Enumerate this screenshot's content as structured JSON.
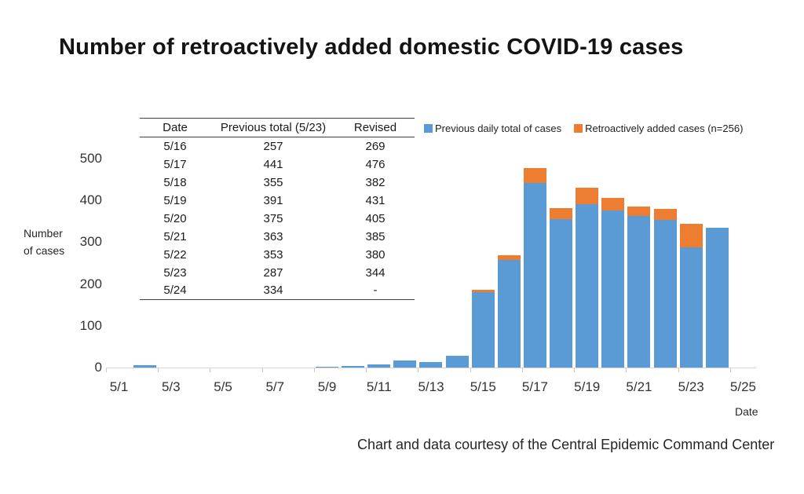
{
  "title": "Number of retroactively added domestic COVID-19 cases",
  "caption": "Chart and data courtesy of the Central Epidemic Command Center",
  "colors": {
    "blue": "#5B9BD5",
    "orange": "#ED7D31",
    "axis_line": "#D6D6D6"
  },
  "legend": {
    "items": [
      {
        "label": "Previous daily total of cases",
        "color": "#5B9BD5"
      },
      {
        "label": "Retroactively added cases (n=256)",
        "color": "#ED7D31"
      }
    ]
  },
  "y_axis": {
    "title_line1": "Number",
    "title_line2": "of cases",
    "ticks": [
      "500",
      "400",
      "300",
      "200",
      "100",
      "0"
    ]
  },
  "x_axis": {
    "title": "Date",
    "ticks": [
      "5/1",
      "5/3",
      "5/5",
      "5/7",
      "5/9",
      "5/11",
      "5/13",
      "5/15",
      "5/17",
      "5/19",
      "5/21",
      "5/23",
      "5/25"
    ]
  },
  "table": {
    "headers": [
      "Date",
      "Previous total (5/23)",
      "Revised"
    ],
    "rows": [
      [
        "5/16",
        "257",
        "269"
      ],
      [
        "5/17",
        "441",
        "476"
      ],
      [
        "5/18",
        "355",
        "382"
      ],
      [
        "5/19",
        "391",
        "431"
      ],
      [
        "5/20",
        "375",
        "405"
      ],
      [
        "5/21",
        "363",
        "385"
      ],
      [
        "5/22",
        "353",
        "380"
      ],
      [
        "5/23",
        "287",
        "344"
      ],
      [
        "5/24",
        "334",
        "-"
      ]
    ]
  },
  "chart_data": {
    "type": "bar",
    "stacked": true,
    "title": "Number of retroactively added domestic COVID-19 cases",
    "xlabel": "Date",
    "ylabel": "Number of cases",
    "ylim": [
      0,
      500
    ],
    "grid": false,
    "legend_position": "top-right",
    "categories": [
      "5/1",
      "5/2",
      "5/3",
      "5/4",
      "5/5",
      "5/6",
      "5/7",
      "5/8",
      "5/9",
      "5/10",
      "5/11",
      "5/12",
      "5/13",
      "5/14",
      "5/15",
      "5/16",
      "5/17",
      "5/18",
      "5/19",
      "5/20",
      "5/21",
      "5/22",
      "5/23",
      "5/24",
      "5/25"
    ],
    "series": [
      {
        "name": "Previous daily total of cases",
        "color": "#5B9BD5",
        "values": [
          0,
          6,
          0,
          0,
          0,
          0,
          0,
          0,
          1,
          3,
          7,
          16,
          13,
          29,
          180,
          257,
          441,
          355,
          391,
          375,
          363,
          353,
          287,
          334,
          0
        ]
      },
      {
        "name": "Retroactively added cases (n=256)",
        "color": "#ED7D31",
        "values": [
          0,
          0,
          0,
          0,
          0,
          0,
          0,
          0,
          0,
          0,
          0,
          0,
          0,
          0,
          5,
          12,
          35,
          27,
          40,
          30,
          22,
          27,
          57,
          0,
          0
        ]
      }
    ]
  }
}
